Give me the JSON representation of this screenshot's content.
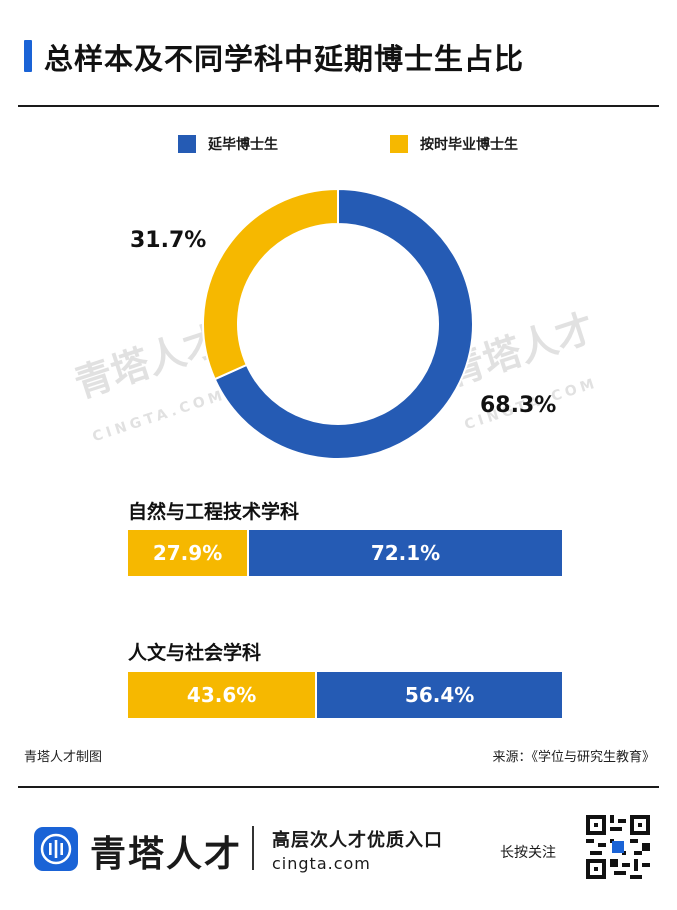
{
  "title": "总样本及不同学科中延期博士生占比",
  "legend": [
    {
      "label": "延毕博士生",
      "color": "#255bb4"
    },
    {
      "label": "按时毕业博士生",
      "color": "#f6b800"
    }
  ],
  "chart_data": [
    {
      "type": "pie",
      "labels": [
        "延毕博士生",
        "按时毕业博士生"
      ],
      "values": [
        68.3,
        31.7
      ],
      "value_labels": [
        "68.3%",
        "31.7%"
      ],
      "colors": [
        "#255bb4",
        "#f6b800"
      ]
    },
    {
      "type": "bar",
      "orientation": "horizontal-stacked",
      "title": "自然与工程技术学科",
      "series": [
        {
          "name": "按时毕业博士生",
          "value": 27.9,
          "label": "27.9%"
        },
        {
          "name": "延毕博士生",
          "value": 72.1,
          "label": "72.1%"
        }
      ]
    },
    {
      "type": "bar",
      "orientation": "horizontal-stacked",
      "title": "人文与社会学科",
      "series": [
        {
          "name": "按时毕业博士生",
          "value": 43.6,
          "label": "43.6%"
        },
        {
          "name": "延毕博士生",
          "value": 56.4,
          "label": "56.4%"
        }
      ]
    }
  ],
  "credit": "青塔人才制图",
  "source": "来源：《学位与研究生教育》",
  "watermark": {
    "brand": "青塔人才",
    "domain": "CINGTA.COM"
  },
  "footer": {
    "brand": "青塔人才",
    "slogan": "高层次人才优质入口",
    "site": "cingta.com",
    "follow": "长按关注"
  }
}
